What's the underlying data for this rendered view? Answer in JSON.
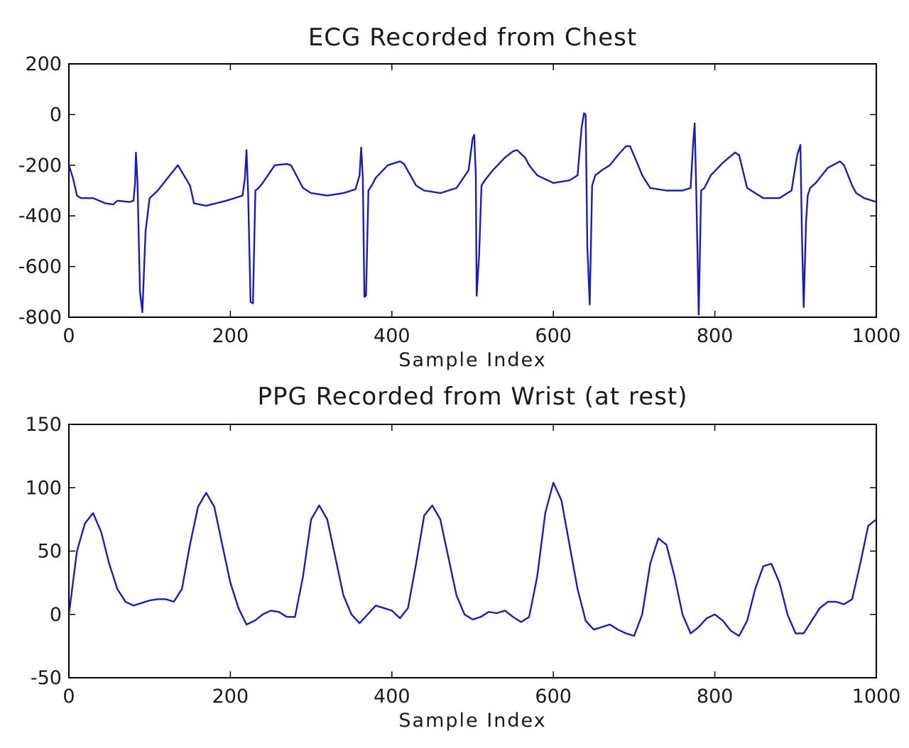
{
  "chart_data": [
    {
      "type": "line",
      "title": "ECG Recorded from Chest",
      "xlabel": "Sample Index",
      "ylabel": "",
      "xlim": [
        0,
        1000
      ],
      "ylim": [
        -800,
        200
      ],
      "xticks": [
        0,
        200,
        400,
        600,
        800,
        1000
      ],
      "yticks": [
        -800,
        -600,
        -400,
        -200,
        0,
        200
      ],
      "xtick_labels": [
        "0",
        "200",
        "400",
        "600",
        "800",
        "1000"
      ],
      "ytick_labels": [
        "-800",
        "-600",
        "-400",
        "-200",
        "0",
        "200"
      ],
      "grid": false,
      "color": "#1c1cb4",
      "series": [
        {
          "x": [
            0,
            5,
            10,
            15,
            30,
            45,
            55,
            60,
            75,
            80,
            82,
            83,
            85,
            88,
            91,
            95,
            100,
            110,
            130,
            135,
            150,
            155,
            170,
            195,
            215,
            218,
            220,
            222,
            225,
            228,
            231,
            235,
            240,
            255,
            270,
            275,
            290,
            300,
            320,
            340,
            355,
            360,
            362,
            364,
            366,
            368,
            371,
            375,
            380,
            395,
            410,
            415,
            430,
            440,
            460,
            480,
            495,
            500,
            502,
            504,
            505,
            508,
            511,
            515,
            525,
            540,
            550,
            555,
            565,
            570,
            580,
            600,
            620,
            630,
            635,
            638,
            640,
            642,
            645,
            648,
            652,
            660,
            670,
            680,
            690,
            695,
            705,
            710,
            720,
            740,
            760,
            770,
            773,
            775,
            777,
            780,
            783,
            787,
            795,
            810,
            825,
            830,
            840,
            845,
            860,
            880,
            895,
            902,
            906,
            908,
            910,
            913,
            915,
            918,
            925,
            940,
            955,
            960,
            970,
            975,
            985,
            995,
            1000
          ],
          "y": [
            -200,
            -250,
            -320,
            -330,
            -330,
            -350,
            -355,
            -340,
            -345,
            -340,
            -270,
            -150,
            -265,
            -700,
            -780,
            -460,
            -330,
            -300,
            -220,
            -200,
            -280,
            -350,
            -360,
            -340,
            -320,
            -250,
            -140,
            -310,
            -740,
            -745,
            -300,
            -290,
            -270,
            -200,
            -195,
            -200,
            -290,
            -310,
            -320,
            -310,
            -295,
            -240,
            -130,
            -250,
            -720,
            -715,
            -300,
            -280,
            -250,
            -200,
            -185,
            -195,
            -280,
            -300,
            -310,
            -290,
            -220,
            -95,
            -80,
            -240,
            -715,
            -560,
            -280,
            -260,
            -220,
            -170,
            -145,
            -140,
            -170,
            -200,
            -240,
            -270,
            -260,
            -240,
            -50,
            5,
            0,
            -520,
            -750,
            -280,
            -240,
            -220,
            -200,
            -160,
            -125,
            -125,
            -200,
            -240,
            -290,
            -300,
            -300,
            -290,
            -120,
            -35,
            -300,
            -790,
            -300,
            -290,
            -240,
            -190,
            -150,
            -160,
            -290,
            -300,
            -330,
            -330,
            -300,
            -160,
            -120,
            -500,
            -760,
            -420,
            -320,
            -290,
            -270,
            -210,
            -185,
            -200,
            -280,
            -310,
            -330,
            -340,
            -345
          ]
        }
      ]
    },
    {
      "type": "line",
      "title": "PPG Recorded from Wrist (at rest)",
      "xlabel": "Sample Index",
      "ylabel": "",
      "xlim": [
        0,
        1000
      ],
      "ylim": [
        -50,
        150
      ],
      "xticks": [
        0,
        200,
        400,
        600,
        800,
        1000
      ],
      "yticks": [
        -50,
        0,
        50,
        100,
        150
      ],
      "xtick_labels": [
        "0",
        "200",
        "400",
        "600",
        "800",
        "1000"
      ],
      "ytick_labels": [
        "-50",
        "0",
        "50",
        "100",
        "150"
      ],
      "grid": false,
      "color": "#1c1cb4",
      "series": [
        {
          "x": [
            0,
            5,
            10,
            20,
            30,
            40,
            50,
            60,
            70,
            80,
            90,
            100,
            110,
            120,
            130,
            140,
            150,
            160,
            170,
            180,
            190,
            200,
            210,
            220,
            230,
            240,
            250,
            260,
            270,
            280,
            290,
            300,
            310,
            320,
            330,
            340,
            350,
            360,
            370,
            380,
            390,
            400,
            410,
            420,
            430,
            440,
            450,
            460,
            470,
            480,
            490,
            500,
            510,
            520,
            530,
            540,
            550,
            560,
            570,
            580,
            590,
            600,
            610,
            620,
            630,
            640,
            650,
            660,
            670,
            680,
            690,
            700,
            710,
            720,
            730,
            740,
            750,
            760,
            770,
            780,
            790,
            800,
            810,
            820,
            830,
            840,
            850,
            860,
            870,
            880,
            890,
            900,
            910,
            920,
            930,
            940,
            950,
            960,
            970,
            980,
            990,
            1000
          ],
          "y": [
            0,
            25,
            50,
            72,
            80,
            65,
            40,
            20,
            10,
            7,
            9,
            11,
            12,
            12,
            10,
            20,
            55,
            85,
            96,
            85,
            55,
            25,
            5,
            -8,
            -5,
            0,
            3,
            2,
            -2,
            -2,
            30,
            75,
            86,
            75,
            45,
            15,
            0,
            -7,
            0,
            7,
            5,
            3,
            -3,
            5,
            40,
            78,
            86,
            75,
            45,
            15,
            0,
            -4,
            -2,
            2,
            1,
            3,
            -2,
            -6,
            -2,
            30,
            80,
            104,
            90,
            55,
            20,
            -5,
            -12,
            -10,
            -8,
            -12,
            -15,
            -17,
            0,
            40,
            60,
            55,
            30,
            0,
            -15,
            -10,
            -3,
            0,
            -5,
            -13,
            -17,
            -5,
            20,
            38,
            40,
            25,
            0,
            -15,
            -15,
            -5,
            5,
            10,
            10,
            8,
            12,
            40,
            70,
            75
          ]
        }
      ]
    }
  ]
}
